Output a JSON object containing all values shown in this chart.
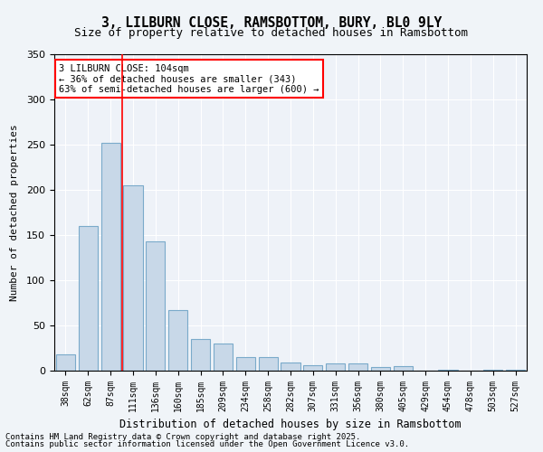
{
  "title_line1": "3, LILBURN CLOSE, RAMSBOTTOM, BURY, BL0 9LY",
  "title_line2": "Size of property relative to detached houses in Ramsbottom",
  "categories": [
    "38sqm",
    "62sqm",
    "87sqm",
    "111sqm",
    "136sqm",
    "160sqm",
    "185sqm",
    "209sqm",
    "234sqm",
    "258sqm",
    "282sqm",
    "307sqm",
    "331sqm",
    "356sqm",
    "380sqm",
    "405sqm",
    "429sqm",
    "454sqm",
    "478sqm",
    "503sqm",
    "527sqm"
  ],
  "values": [
    18,
    160,
    252,
    205,
    143,
    67,
    35,
    30,
    15,
    15,
    9,
    6,
    8,
    8,
    4,
    5,
    0,
    1,
    0,
    1,
    1
  ],
  "bar_color": "#c8d8e8",
  "bar_edge_color": "#7aaaca",
  "background_color": "#eef2f8",
  "plot_bg_color": "#eef2f8",
  "red_line_x": 2.5,
  "xlabel": "Distribution of detached houses by size in Ramsbottom",
  "ylabel": "Number of detached properties",
  "ylim": [
    0,
    350
  ],
  "yticks": [
    0,
    50,
    100,
    150,
    200,
    250,
    300,
    350
  ],
  "annotation_title": "3 LILBURN CLOSE: 104sqm",
  "annotation_line1": "← 36% of detached houses are smaller (343)",
  "annotation_line2": "63% of semi-detached houses are larger (600) →",
  "footer_line1": "Contains HM Land Registry data © Crown copyright and database right 2025.",
  "footer_line2": "Contains public sector information licensed under the Open Government Licence v3.0."
}
